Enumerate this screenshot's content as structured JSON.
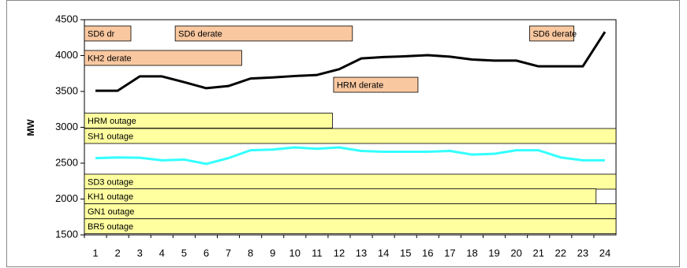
{
  "chart_data": {
    "type": "line",
    "ylabel": "MW",
    "categories": [
      1,
      2,
      3,
      4,
      5,
      6,
      7,
      8,
      9,
      10,
      11,
      12,
      13,
      14,
      15,
      16,
      17,
      18,
      19,
      20,
      21,
      22,
      23,
      24
    ],
    "series": [
      {
        "color": "#000000",
        "values": [
          3510,
          3510,
          3710,
          3710,
          3630,
          3545,
          3575,
          3680,
          3695,
          3715,
          3730,
          3810,
          3960,
          3980,
          3990,
          4005,
          3985,
          3945,
          3930,
          3930,
          3850,
          3850,
          3850,
          4330
        ]
      },
      {
        "color": "#33ffff",
        "values": [
          2570,
          2580,
          2575,
          2540,
          2550,
          2490,
          2570,
          2680,
          2690,
          2720,
          2700,
          2720,
          2670,
          2660,
          2660,
          2660,
          2670,
          2620,
          2630,
          2680,
          2680,
          2580,
          2540,
          2540
        ]
      }
    ],
    "ylim": [
      1500,
      4500
    ],
    "yticks": [
      1500,
      2000,
      2500,
      3000,
      3500,
      4000,
      4500
    ],
    "grid": false,
    "annotations": [
      {
        "text": "SD6 dr",
        "start": 0.5,
        "end": 2.6,
        "y": 4308,
        "color": "#fac8a0"
      },
      {
        "text": "SD6 derate",
        "start": 4.6,
        "end": 12.6,
        "y": 4308,
        "color": "#fac8a0"
      },
      {
        "text": "SD6 derate",
        "start": 20.6,
        "end": 22.6,
        "y": 4308,
        "color": "#fac8a0"
      },
      {
        "text": "KH2 derate",
        "start": 0.5,
        "end": 7.6,
        "y": 3967,
        "color": "#fac8a0"
      },
      {
        "text": "HRM derate",
        "start": 11.75,
        "end": 15.56,
        "y": 3593,
        "color": "#fac8a0"
      },
      {
        "text": "HRM outage",
        "start": 0.5,
        "end": 11.7,
        "y": 3093,
        "color": "#ffffa0"
      },
      {
        "text": "SH1 outage",
        "start": 0.5,
        "end": 24.5,
        "y": 2879,
        "color": "#ffffa0"
      },
      {
        "text": "SD3 outage",
        "start": 0.5,
        "end": 24.5,
        "y": 2242,
        "color": "#ffffa0"
      },
      {
        "text": "KH1 outage",
        "start": 0.5,
        "end": 23.6,
        "y": 2038,
        "color": "#ffffa0"
      },
      {
        "text": "GN1 outage",
        "start": 0.5,
        "end": 24.5,
        "y": 1830,
        "color": "#ffffa0"
      },
      {
        "text": "BR5 outage",
        "start": 0.5,
        "end": 24.5,
        "y": 1621,
        "color": "#ffffa0"
      }
    ]
  }
}
